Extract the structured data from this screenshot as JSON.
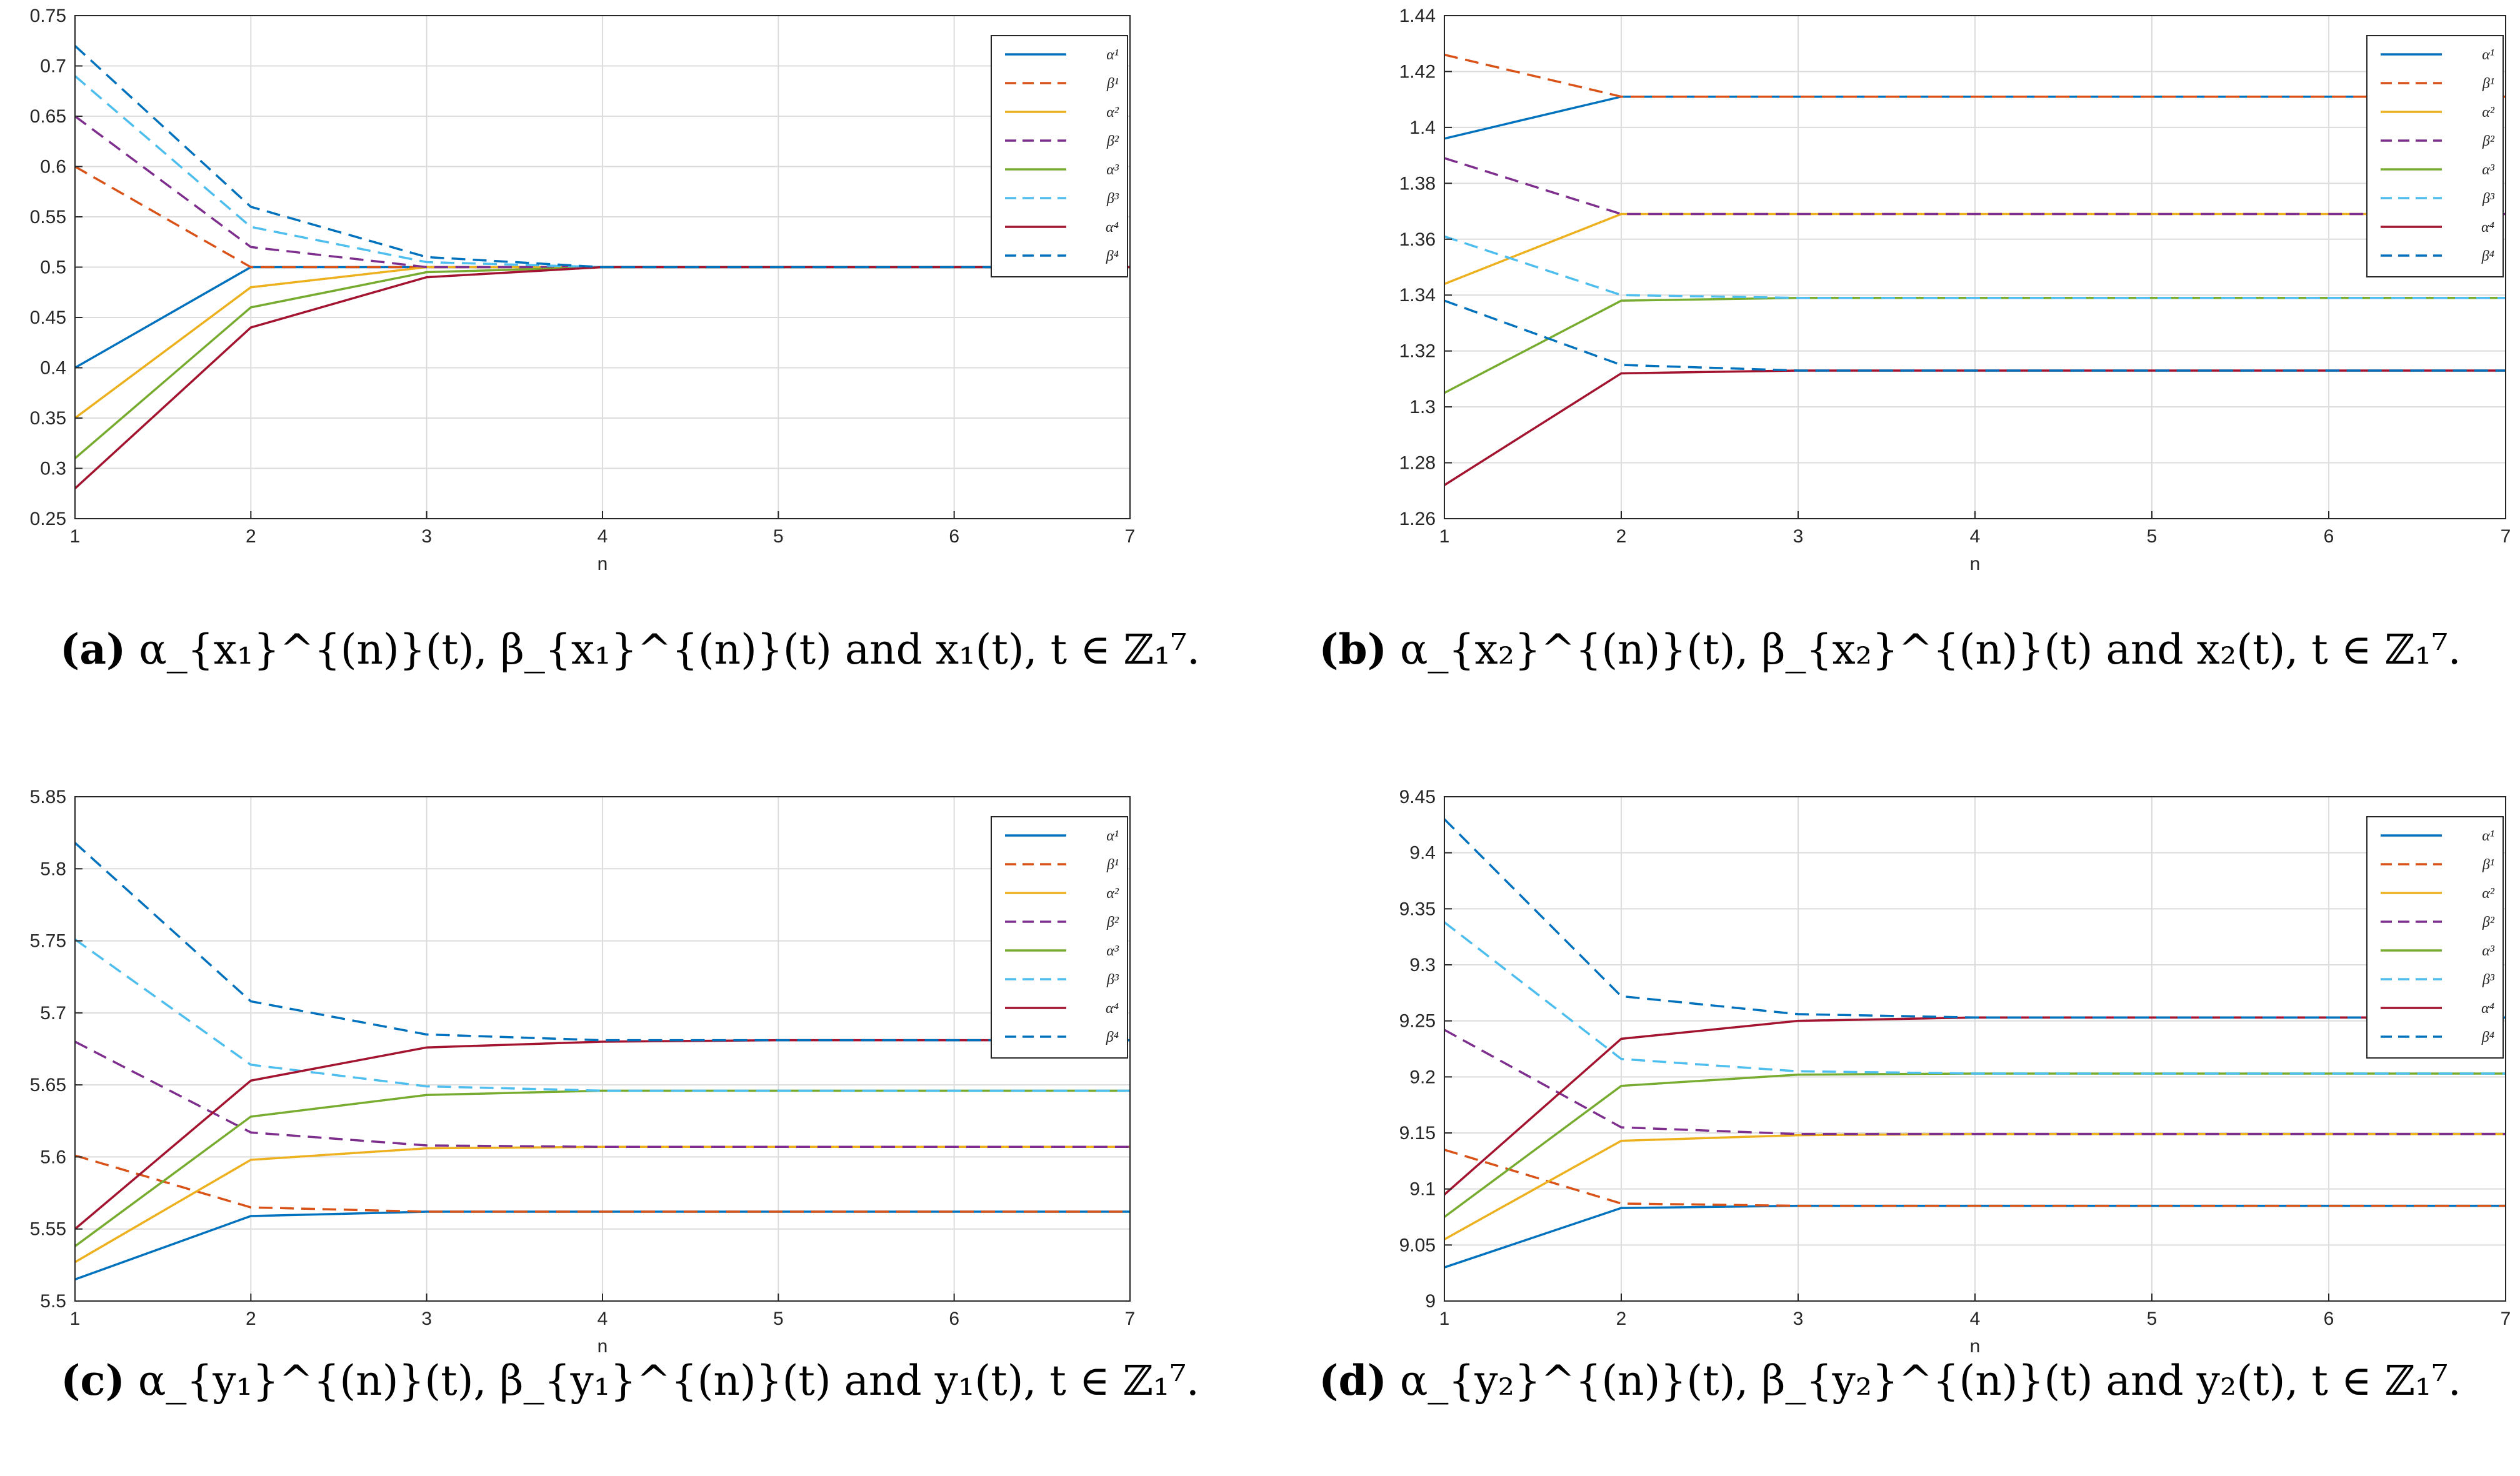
{
  "chart_data": [
    {
      "id": "a",
      "type": "line",
      "xlabel": "n",
      "ylabel": "",
      "xlim": [
        1,
        7
      ],
      "ylim": [
        0.25,
        0.75
      ],
      "yticks": [
        "0.25",
        "0.3",
        "0.35",
        "0.4",
        "0.45",
        "0.5",
        "0.55",
        "0.6",
        "0.65",
        "0.7",
        "0.75"
      ],
      "xticks": [
        "1",
        "2",
        "3",
        "4",
        "5",
        "6",
        "7"
      ],
      "grid": true,
      "legend": "top-right",
      "x": [
        1,
        2,
        3,
        4,
        5,
        6,
        7
      ],
      "series": [
        {
          "name": "α¹",
          "style": "solid",
          "color": "#0072BD",
          "values": [
            0.4,
            0.5,
            0.5,
            0.5,
            0.5,
            0.5,
            0.5
          ]
        },
        {
          "name": "β¹",
          "style": "dashed",
          "color": "#D95319",
          "values": [
            0.6,
            0.5,
            0.5,
            0.5,
            0.5,
            0.5,
            0.5
          ]
        },
        {
          "name": "α²",
          "style": "solid",
          "color": "#EDB120",
          "values": [
            0.35,
            0.48,
            0.5,
            0.5,
            0.5,
            0.5,
            0.5
          ]
        },
        {
          "name": "β²",
          "style": "dashed",
          "color": "#7E2F8E",
          "values": [
            0.65,
            0.52,
            0.5,
            0.5,
            0.5,
            0.5,
            0.5
          ]
        },
        {
          "name": "α³",
          "style": "solid",
          "color": "#77AC30",
          "values": [
            0.31,
            0.46,
            0.495,
            0.5,
            0.5,
            0.5,
            0.5
          ]
        },
        {
          "name": "β³",
          "style": "dashed",
          "color": "#4DBEEE",
          "values": [
            0.69,
            0.54,
            0.505,
            0.5,
            0.5,
            0.5,
            0.5
          ]
        },
        {
          "name": "α⁴",
          "style": "solid",
          "color": "#A2142F",
          "values": [
            0.28,
            0.44,
            0.49,
            0.5,
            0.5,
            0.5,
            0.5
          ]
        },
        {
          "name": "β⁴",
          "style": "dashed",
          "color": "#0072BD",
          "values": [
            0.72,
            0.56,
            0.51,
            0.5,
            0.5,
            0.5,
            0.5
          ]
        }
      ]
    },
    {
      "id": "b",
      "type": "line",
      "xlabel": "n",
      "ylabel": "",
      "xlim": [
        1,
        7
      ],
      "ylim": [
        1.26,
        1.44
      ],
      "yticks": [
        "1.26",
        "1.28",
        "1.3",
        "1.32",
        "1.34",
        "1.36",
        "1.38",
        "1.4",
        "1.42",
        "1.44"
      ],
      "xticks": [
        "1",
        "2",
        "3",
        "4",
        "5",
        "6",
        "7"
      ],
      "grid": true,
      "legend": "top-right",
      "x": [
        1,
        2,
        3,
        4,
        5,
        6,
        7
      ],
      "series": [
        {
          "name": "α¹",
          "style": "solid",
          "color": "#0072BD",
          "values": [
            1.396,
            1.411,
            1.411,
            1.411,
            1.411,
            1.411,
            1.411
          ]
        },
        {
          "name": "β¹",
          "style": "dashed",
          "color": "#D95319",
          "values": [
            1.426,
            1.411,
            1.411,
            1.411,
            1.411,
            1.411,
            1.411
          ]
        },
        {
          "name": "α²",
          "style": "solid",
          "color": "#EDB120",
          "values": [
            1.344,
            1.369,
            1.369,
            1.369,
            1.369,
            1.369,
            1.369
          ]
        },
        {
          "name": "β²",
          "style": "dashed",
          "color": "#7E2F8E",
          "values": [
            1.389,
            1.369,
            1.369,
            1.369,
            1.369,
            1.369,
            1.369
          ]
        },
        {
          "name": "α³",
          "style": "solid",
          "color": "#77AC30",
          "values": [
            1.305,
            1.338,
            1.339,
            1.339,
            1.339,
            1.339,
            1.339
          ]
        },
        {
          "name": "β³",
          "style": "dashed",
          "color": "#4DBEEE",
          "values": [
            1.361,
            1.34,
            1.339,
            1.339,
            1.339,
            1.339,
            1.339
          ]
        },
        {
          "name": "α⁴",
          "style": "solid",
          "color": "#A2142F",
          "values": [
            1.272,
            1.312,
            1.313,
            1.313,
            1.313,
            1.313,
            1.313
          ]
        },
        {
          "name": "β⁴",
          "style": "dashed",
          "color": "#0072BD",
          "values": [
            1.338,
            1.315,
            1.313,
            1.313,
            1.313,
            1.313,
            1.313
          ]
        }
      ]
    },
    {
      "id": "c",
      "type": "line",
      "xlabel": "n",
      "ylabel": "",
      "xlim": [
        1,
        7
      ],
      "ylim": [
        5.5,
        5.85
      ],
      "yticks": [
        "5.5",
        "5.55",
        "5.6",
        "5.65",
        "5.7",
        "5.75",
        "5.8",
        "5.85"
      ],
      "xticks": [
        "1",
        "2",
        "3",
        "4",
        "5",
        "6",
        "7"
      ],
      "grid": true,
      "legend": "top-right",
      "x": [
        1,
        2,
        3,
        4,
        5,
        6,
        7
      ],
      "series": [
        {
          "name": "α¹",
          "style": "solid",
          "color": "#0072BD",
          "values": [
            5.515,
            5.559,
            5.562,
            5.562,
            5.562,
            5.562,
            5.562
          ]
        },
        {
          "name": "β¹",
          "style": "dashed",
          "color": "#D95319",
          "values": [
            5.601,
            5.565,
            5.562,
            5.562,
            5.562,
            5.562,
            5.562
          ]
        },
        {
          "name": "α²",
          "style": "solid",
          "color": "#EDB120",
          "values": [
            5.527,
            5.598,
            5.606,
            5.607,
            5.607,
            5.607,
            5.607
          ]
        },
        {
          "name": "β²",
          "style": "dashed",
          "color": "#7E2F8E",
          "values": [
            5.68,
            5.617,
            5.608,
            5.607,
            5.607,
            5.607,
            5.607
          ]
        },
        {
          "name": "α³",
          "style": "solid",
          "color": "#77AC30",
          "values": [
            5.538,
            5.628,
            5.643,
            5.646,
            5.646,
            5.646,
            5.646
          ]
        },
        {
          "name": "β³",
          "style": "dashed",
          "color": "#4DBEEE",
          "values": [
            5.751,
            5.664,
            5.649,
            5.646,
            5.646,
            5.646,
            5.646
          ]
        },
        {
          "name": "α⁴",
          "style": "solid",
          "color": "#A2142F",
          "values": [
            5.55,
            5.653,
            5.676,
            5.68,
            5.681,
            5.681,
            5.681
          ]
        },
        {
          "name": "β⁴",
          "style": "dashed",
          "color": "#0072BD",
          "values": [
            5.818,
            5.708,
            5.685,
            5.681,
            5.681,
            5.681,
            5.681
          ]
        }
      ]
    },
    {
      "id": "d",
      "type": "line",
      "xlabel": "n",
      "ylabel": "",
      "xlim": [
        1,
        7
      ],
      "ylim": [
        9.0,
        9.45
      ],
      "yticks": [
        "9",
        "9.05",
        "9.1",
        "9.15",
        "9.2",
        "9.25",
        "9.3",
        "9.35",
        "9.4",
        "9.45"
      ],
      "xticks": [
        "1",
        "2",
        "3",
        "4",
        "5",
        "6",
        "7"
      ],
      "grid": true,
      "legend": "top-right",
      "x": [
        1,
        2,
        3,
        4,
        5,
        6,
        7
      ],
      "series": [
        {
          "name": "α¹",
          "style": "solid",
          "color": "#0072BD",
          "values": [
            9.03,
            9.083,
            9.085,
            9.085,
            9.085,
            9.085,
            9.085
          ]
        },
        {
          "name": "β¹",
          "style": "dashed",
          "color": "#D95319",
          "values": [
            9.135,
            9.087,
            9.085,
            9.085,
            9.085,
            9.085,
            9.085
          ]
        },
        {
          "name": "α²",
          "style": "solid",
          "color": "#EDB120",
          "values": [
            9.055,
            9.143,
            9.148,
            9.149,
            9.149,
            9.149,
            9.149
          ]
        },
        {
          "name": "β²",
          "style": "dashed",
          "color": "#7E2F8E",
          "values": [
            9.242,
            9.155,
            9.149,
            9.149,
            9.149,
            9.149,
            9.149
          ]
        },
        {
          "name": "α³",
          "style": "solid",
          "color": "#77AC30",
          "values": [
            9.075,
            9.192,
            9.202,
            9.203,
            9.203,
            9.203,
            9.203
          ]
        },
        {
          "name": "β³",
          "style": "dashed",
          "color": "#4DBEEE",
          "values": [
            9.338,
            9.216,
            9.205,
            9.203,
            9.203,
            9.203,
            9.203
          ]
        },
        {
          "name": "α⁴",
          "style": "solid",
          "color": "#A2142F",
          "values": [
            9.095,
            9.234,
            9.25,
            9.253,
            9.253,
            9.253,
            9.253
          ]
        },
        {
          "name": "β⁴",
          "style": "dashed",
          "color": "#0072BD",
          "values": [
            9.43,
            9.272,
            9.256,
            9.253,
            9.253,
            9.253,
            9.253
          ]
        }
      ]
    }
  ],
  "captions": {
    "a": {
      "label": "(a)",
      "text": "α_{x₁}^{(n)}(t), β_{x₁}^{(n)}(t) and x₁(t), t ∈ ℤ₁⁷."
    },
    "b": {
      "label": "(b)",
      "text": "α_{x₂}^{(n)}(t), β_{x₂}^{(n)}(t) and x₂(t), t ∈ ℤ₁⁷."
    },
    "c": {
      "label": "(c)",
      "text": "α_{y₁}^{(n)}(t), β_{y₁}^{(n)}(t) and y₁(t), t ∈ ℤ₁⁷."
    },
    "d": {
      "label": "(d)",
      "text": "α_{y₂}^{(n)}(t), β_{y₂}^{(n)}(t) and y₂(t), t ∈ ℤ₁⁷."
    }
  }
}
